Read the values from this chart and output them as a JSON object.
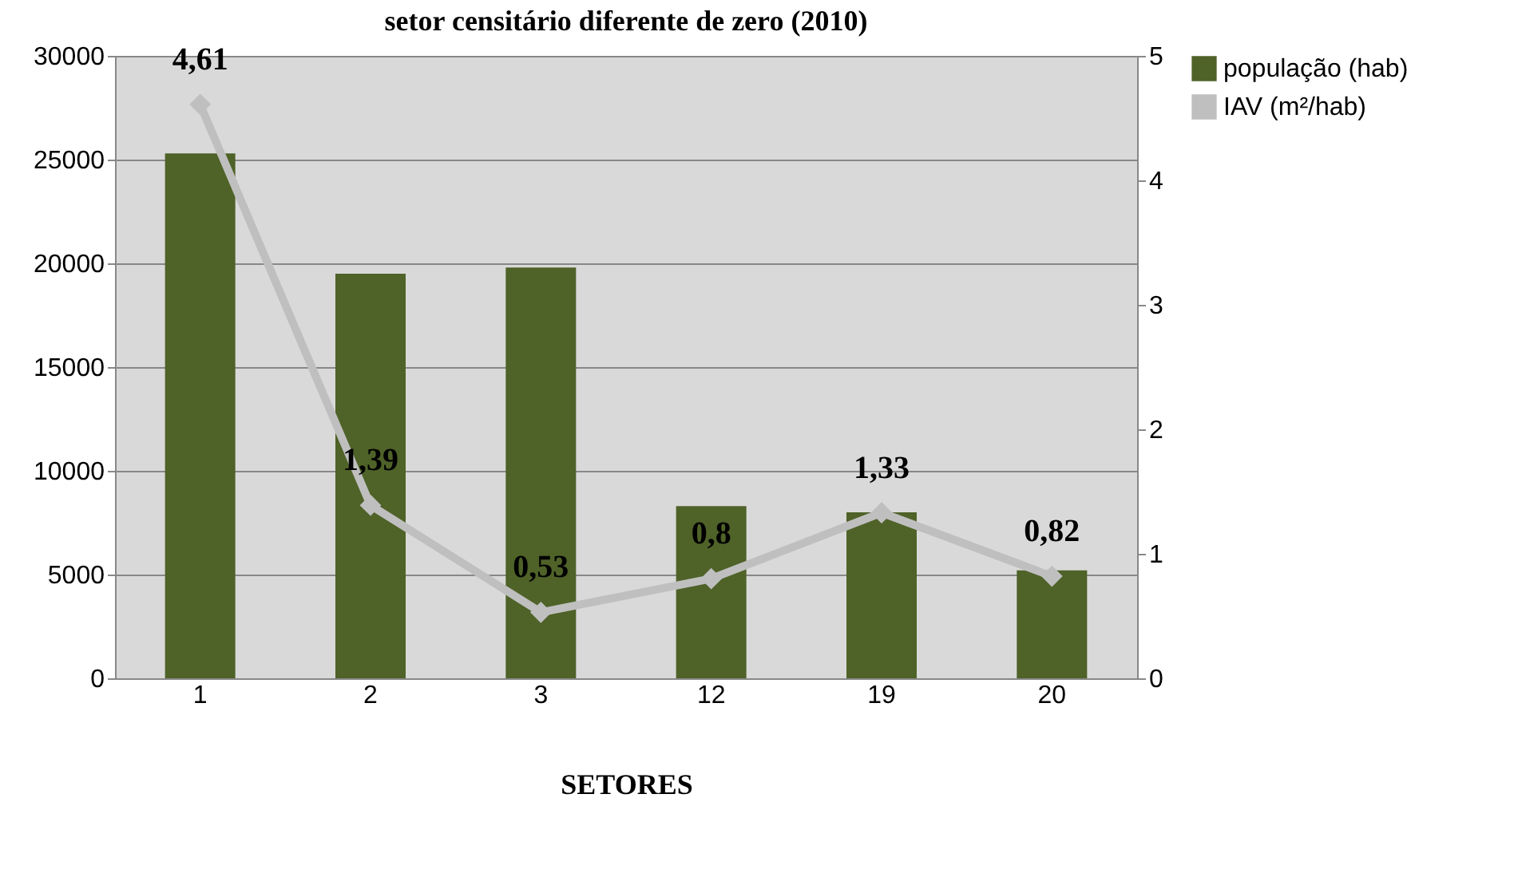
{
  "chart_data": {
    "type": "bar",
    "title": "setor censitário diferente de zero (2010)",
    "xlabel": "SETORES",
    "categories": [
      "1",
      "2",
      "3",
      "12",
      "19",
      "20"
    ],
    "series": [
      {
        "name": "população (hab)",
        "color": "#4f6228",
        "values": [
          25300,
          19500,
          19800,
          8300,
          8000,
          5200
        ]
      },
      {
        "name": "IAV (m²/hab)",
        "type": "line",
        "axis": "y2",
        "color": "#bfbfbf",
        "marker": "diamond",
        "line_style": "solid",
        "values": [
          4.61,
          1.39,
          0.53,
          0.8,
          1.33,
          0.82
        ],
        "value_labels": [
          "4,61",
          "1,39",
          "0,53",
          "0,8",
          "1,33",
          "0,82"
        ]
      }
    ],
    "ylim": [
      0,
      30000
    ],
    "yticks": [
      0,
      5000,
      10000,
      15000,
      20000,
      25000,
      30000
    ],
    "y2lim": [
      0,
      5
    ],
    "y2ticks": [
      0,
      1,
      2,
      3,
      4,
      5
    ],
    "grid": "y",
    "legend": "right"
  }
}
